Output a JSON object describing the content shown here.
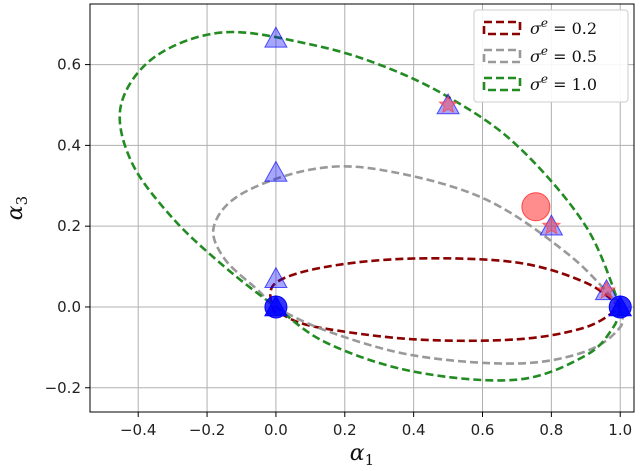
{
  "chart_data": {
    "type": "scatter",
    "xlabel": "α",
    "xlabel_sub": "1",
    "ylabel": "α",
    "ylabel_sub": "3",
    "xlim": [
      -0.54,
      1.04
    ],
    "ylim": [
      -0.26,
      0.75
    ],
    "xticks": [
      -0.4,
      -0.2,
      0.0,
      0.2,
      0.4,
      0.6,
      0.8,
      1.0
    ],
    "xtick_labels": [
      "−0.4",
      "−0.2",
      "0.0",
      "0.2",
      "0.4",
      "0.6",
      "0.8",
      "1.0"
    ],
    "yticks": [
      -0.2,
      0.0,
      0.2,
      0.4,
      0.6
    ],
    "ytick_labels": [
      "−0.2",
      "0.0",
      "0.2",
      "0.4",
      "0.6"
    ],
    "grid": true,
    "legend_position": "top-right",
    "series": [
      {
        "name": "σ^e = 0.2",
        "legend_main": "σ",
        "legend_sup": "e",
        "legend_value": " = 0.2",
        "style": "dashed-ellipse",
        "color": "#8b0000",
        "x": [
          1.0,
          0.9,
          0.7,
          0.4,
          0.15,
          0.0,
          -0.01,
          0.02,
          0.12,
          0.4,
          0.7,
          0.9,
          1.0
        ],
        "y": [
          0.0,
          0.06,
          0.11,
          0.12,
          0.1,
          0.06,
          0.0,
          -0.02,
          -0.05,
          -0.08,
          -0.08,
          -0.05,
          0.0
        ]
      },
      {
        "name": "σ^e = 0.5",
        "legend_main": "σ",
        "legend_sup": "e",
        "legend_value": " = 0.5",
        "style": "dashed-ellipse",
        "color": "#999999",
        "x": [
          1.0,
          0.85,
          0.6,
          0.3,
          0.1,
          -0.1,
          -0.18,
          -0.15,
          -0.05,
          0.0,
          0.15,
          0.4,
          0.7,
          0.9,
          1.0,
          1.0
        ],
        "y": [
          0.0,
          0.13,
          0.27,
          0.34,
          0.34,
          0.28,
          0.2,
          0.12,
          0.04,
          0.0,
          -0.06,
          -0.12,
          -0.14,
          -0.11,
          -0.05,
          0.0
        ]
      },
      {
        "name": "σ^e = 1.0",
        "legend_main": "σ",
        "legend_sup": "e",
        "legend_value": " = 1.0",
        "style": "dashed-ellipse",
        "color": "#228b22",
        "x": [
          1.0,
          0.9,
          0.7,
          0.5,
          0.3,
          0.1,
          -0.15,
          -0.35,
          -0.45,
          -0.42,
          -0.3,
          -0.15,
          0.0,
          0.15,
          0.4,
          0.7,
          0.9,
          0.98,
          1.0
        ],
        "y": [
          0.0,
          0.2,
          0.4,
          0.52,
          0.6,
          0.65,
          0.68,
          0.62,
          0.5,
          0.36,
          0.22,
          0.1,
          0.0,
          -0.09,
          -0.16,
          -0.18,
          -0.12,
          -0.05,
          0.0
        ]
      }
    ],
    "markers": [
      {
        "shape": "circle",
        "color": "#0000ff",
        "opacity": 0.8,
        "x": 0.0,
        "y": 0.0
      },
      {
        "shape": "circle",
        "color": "#0000ff",
        "opacity": 0.8,
        "x": 1.0,
        "y": 0.0
      },
      {
        "shape": "triangle",
        "color": "#0000ff",
        "opacity": 0.8,
        "x": 0.0,
        "y": 0.0
      },
      {
        "shape": "triangle",
        "color": "#0000ff",
        "opacity": 0.8,
        "x": 1.0,
        "y": 0.0
      },
      {
        "shape": "triangle",
        "color": "#0000ff",
        "opacity": 0.35,
        "x": 0.0,
        "y": 0.665
      },
      {
        "shape": "triangle",
        "color": "#0000ff",
        "opacity": 0.35,
        "x": 0.0,
        "y": 0.333
      },
      {
        "shape": "triangle",
        "color": "#0000ff",
        "opacity": 0.35,
        "x": 0.0,
        "y": 0.07
      },
      {
        "shape": "triangle",
        "color": "#0000ff",
        "opacity": 0.35,
        "x": 0.5,
        "y": 0.5
      },
      {
        "shape": "triangle",
        "color": "#0000ff",
        "opacity": 0.35,
        "x": 0.8,
        "y": 0.2
      },
      {
        "shape": "triangle",
        "color": "#0000ff",
        "opacity": 0.35,
        "x": 0.96,
        "y": 0.04
      },
      {
        "shape": "star",
        "color": "#ff4040",
        "opacity": 0.45,
        "x": 0.5,
        "y": 0.5
      },
      {
        "shape": "star",
        "color": "#ff4040",
        "opacity": 0.45,
        "x": 0.8,
        "y": 0.2
      },
      {
        "shape": "star",
        "color": "#ff4040",
        "opacity": 0.45,
        "x": 0.96,
        "y": 0.04
      },
      {
        "shape": "big-circle",
        "color": "#ff3030",
        "opacity": 0.55,
        "x": 0.755,
        "y": 0.248
      }
    ]
  }
}
